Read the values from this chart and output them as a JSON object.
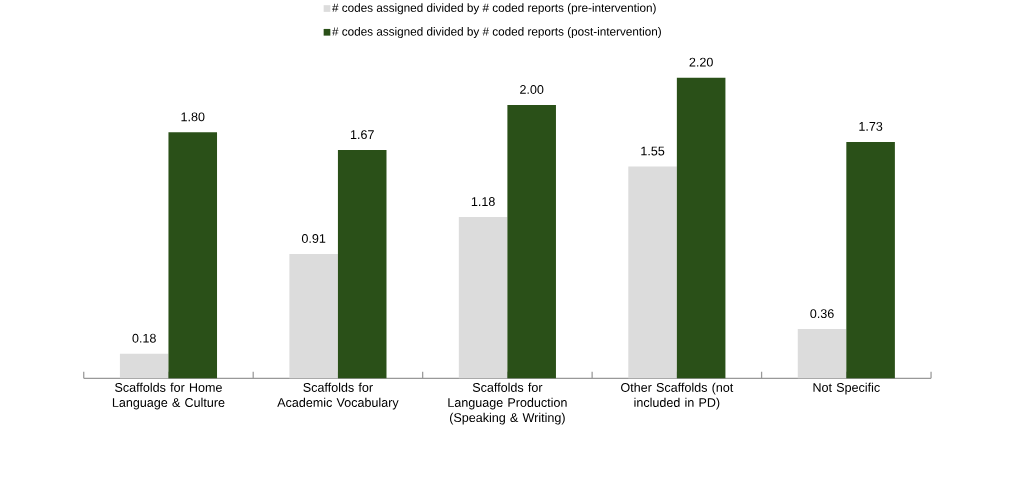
{
  "chart_data": {
    "type": "bar",
    "categories": [
      "Scaffolds for Home Language & Culture",
      "Scaffolds for Academic Vocabulary",
      "Scaffolds for Language Production (Speaking & Writing)",
      "Other Scaffolds (not included in PD)",
      "Not Specific"
    ],
    "series": [
      {
        "name": "# codes assigned divided by # coded reports (pre-intervention)",
        "color": "#dcdcdc",
        "values": [
          0.18,
          0.91,
          1.18,
          1.55,
          0.36
        ],
        "value_labels": [
          "0.18",
          "0.91",
          "1.18",
          "1.55",
          "0.36"
        ]
      },
      {
        "name": "# codes assigned divided by # coded reports (post-intervention)",
        "color": "#2a5018",
        "values": [
          1.8,
          1.67,
          2.0,
          2.2,
          1.73
        ],
        "value_labels": [
          "1.80",
          "1.67",
          "2.00",
          "2.20",
          "1.73"
        ]
      }
    ],
    "legend": "top"
  }
}
